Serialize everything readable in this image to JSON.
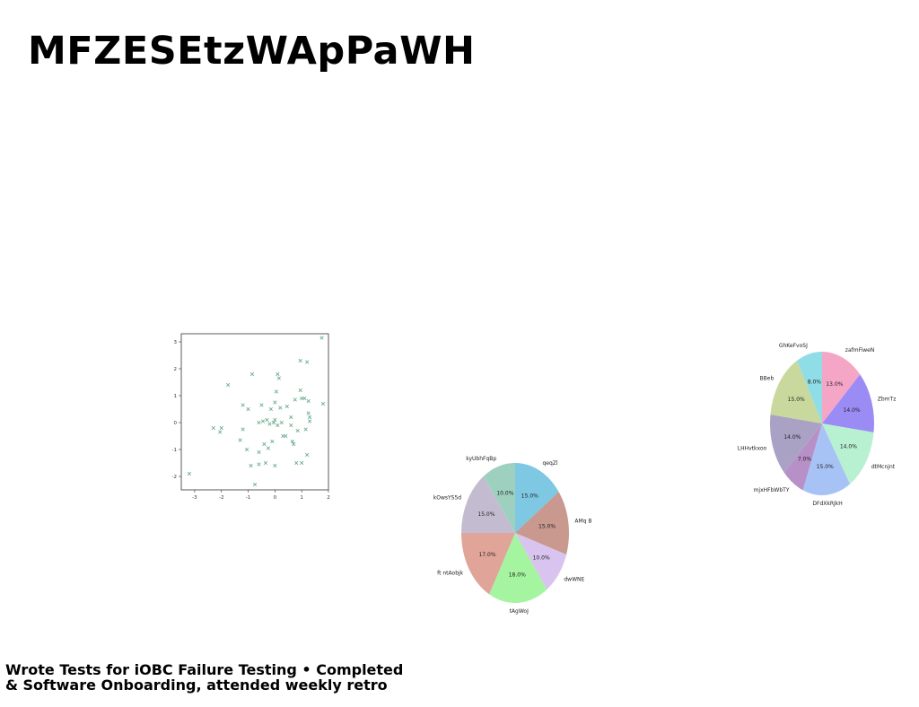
{
  "page": {
    "title": "MFZESEtzWApPaWH",
    "footer_line1": "Wrote Tests for iOBC Failure Testing • Completed",
    "footer_line2": "& Software Onboarding, attended weekly retro"
  },
  "chart_data": [
    {
      "type": "scatter",
      "title": "",
      "xlabel": "",
      "ylabel": "",
      "xlim": [
        -3.5,
        2.0
      ],
      "ylim": [
        -2.5,
        3.3
      ],
      "xticks": [
        "-3",
        "-2",
        "-1",
        "0",
        "1",
        "2"
      ],
      "yticks": [
        "-2",
        "-1",
        "0",
        "1",
        "2",
        "3"
      ],
      "marker": "x",
      "color": "#66aa88",
      "grid": false,
      "points": [
        [
          -3.2,
          -1.9
        ],
        [
          -2.3,
          -0.2
        ],
        [
          -2.05,
          -0.35
        ],
        [
          -2.0,
          -0.2
        ],
        [
          -1.75,
          1.4
        ],
        [
          -1.3,
          -0.65
        ],
        [
          -1.2,
          -0.25
        ],
        [
          -1.2,
          0.65
        ],
        [
          -1.05,
          -1.0
        ],
        [
          -1.0,
          0.5
        ],
        [
          -0.9,
          -1.6
        ],
        [
          -0.85,
          1.8
        ],
        [
          -0.6,
          0.0
        ],
        [
          -0.6,
          -1.1
        ],
        [
          -0.6,
          -1.55
        ],
        [
          -0.5,
          0.65
        ],
        [
          -0.45,
          0.05
        ],
        [
          -0.4,
          -0.8
        ],
        [
          -0.35,
          -1.5
        ],
        [
          -0.3,
          0.1
        ],
        [
          -0.25,
          -0.95
        ],
        [
          -0.2,
          -0.05
        ],
        [
          -0.15,
          0.5
        ],
        [
          -0.1,
          -0.7
        ],
        [
          -0.05,
          0.0
        ],
        [
          0.0,
          0.75
        ],
        [
          0.0,
          0.1
        ],
        [
          0.0,
          -1.6
        ],
        [
          0.05,
          1.15
        ],
        [
          0.1,
          1.8
        ],
        [
          0.1,
          -0.1
        ],
        [
          0.15,
          1.65
        ],
        [
          0.2,
          0.55
        ],
        [
          0.25,
          0.0
        ],
        [
          0.3,
          -0.5
        ],
        [
          0.4,
          -0.5
        ],
        [
          0.45,
          0.6
        ],
        [
          0.6,
          -0.1
        ],
        [
          0.6,
          0.2
        ],
        [
          0.65,
          -0.7
        ],
        [
          0.7,
          -0.8
        ],
        [
          0.75,
          0.85
        ],
        [
          0.8,
          -1.5
        ],
        [
          0.85,
          -0.3
        ],
        [
          0.95,
          1.2
        ],
        [
          0.95,
          2.3
        ],
        [
          1.0,
          -1.5
        ],
        [
          1.0,
          0.9
        ],
        [
          1.1,
          0.9
        ],
        [
          1.15,
          -0.25
        ],
        [
          1.2,
          2.25
        ],
        [
          1.2,
          -1.2
        ],
        [
          1.25,
          0.8
        ],
        [
          1.25,
          0.35
        ],
        [
          1.3,
          0.2
        ],
        [
          1.3,
          0.05
        ],
        [
          1.75,
          3.15
        ],
        [
          1.8,
          0.7
        ],
        [
          -0.75,
          -2.3
        ]
      ]
    },
    {
      "type": "pie",
      "title": "",
      "slices": [
        {
          "label": "qeqZl",
          "value": 15.0,
          "pct": "15.0%",
          "color": "#7ec8e3"
        },
        {
          "label": "AMq B",
          "value": 15.0,
          "pct": "15.0%",
          "color": "#c9988f"
        },
        {
          "label": "dwWNE",
          "value": 10.0,
          "pct": "10.0%",
          "color": "#d8c4ee"
        },
        {
          "label": "tAgWoJ",
          "value": 18.0,
          "pct": "18.0%",
          "color": "#a4f4a0"
        },
        {
          "label": "ft ntAobjk",
          "value": 17.0,
          "pct": "17.0%",
          "color": "#e0a498"
        },
        {
          "label": "kOwsYS5d",
          "value": 15.0,
          "pct": "15.0%",
          "color": "#c3bcd0"
        },
        {
          "label": "kyUbhFqBp",
          "value": 10.0,
          "pct": "10.0%",
          "color": "#9ed0bf"
        }
      ]
    },
    {
      "type": "pie",
      "title": "",
      "slices": [
        {
          "label": "zafmFiweN",
          "value": 13.0,
          "pct": "13.0%",
          "color": "#f5a6c6"
        },
        {
          "label": "ZbmTz",
          "value": 14.0,
          "pct": "14.0%",
          "color": "#9b8cf5"
        },
        {
          "label": "dtMcnjnt",
          "value": 14.0,
          "pct": "14.0%",
          "color": "#b8f0d2"
        },
        {
          "label": "DFdXkRJkH",
          "value": 15.0,
          "pct": "15.0%",
          "color": "#a7c3f6"
        },
        {
          "label": "mjxHFbWbTY",
          "value": 7.0,
          "pct": "7.0%",
          "color": "#b890c8"
        },
        {
          "label": "LHHvtkxoo",
          "value": 14.0,
          "pct": "14.0%",
          "color": "#aaa2c4"
        },
        {
          "label": "BBeb",
          "value": 15.0,
          "pct": "15.0%",
          "color": "#c9d89c"
        },
        {
          "label": "GhKeFvoSJ",
          "value": 8.0,
          "pct": "8.0%",
          "color": "#8fdde6"
        }
      ]
    }
  ]
}
